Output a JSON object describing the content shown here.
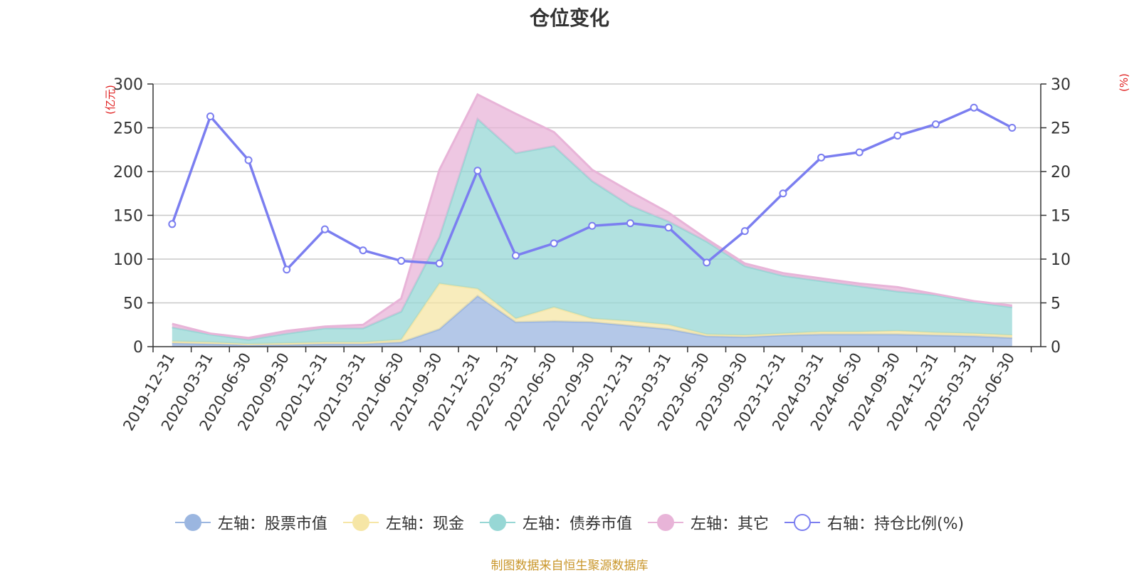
{
  "chart_data": {
    "type": "area",
    "title": "仓位变化",
    "left_axis_unit": "(亿元)",
    "right_axis_unit": "(%)",
    "ylim_left": [
      0,
      300
    ],
    "yticks_left": [
      0,
      50,
      100,
      150,
      200,
      250,
      300
    ],
    "ylim_right": [
      0,
      30
    ],
    "yticks_right": [
      0,
      5,
      10,
      15,
      20,
      25,
      30
    ],
    "grid": true,
    "legend_position": "bottom",
    "categories": [
      "2019-12-31",
      "2020-03-31",
      "2020-06-30",
      "2020-09-30",
      "2020-12-31",
      "2021-03-31",
      "2021-06-30",
      "2021-09-30",
      "2021-12-31",
      "2022-03-31",
      "2022-06-30",
      "2022-09-30",
      "2022-12-31",
      "2023-03-31",
      "2023-06-30",
      "2023-09-30",
      "2023-12-31",
      "2024-03-31",
      "2024-06-30",
      "2024-09-30",
      "2024-12-31",
      "2025-03-31",
      "2025-06-30"
    ],
    "series": [
      {
        "name": "左轴：股票市值",
        "axis": "left",
        "kind": "stacked-area",
        "color": "#9bb6e0",
        "values": [
          4,
          3,
          2,
          2,
          3,
          3,
          5,
          20,
          58,
          28,
          29,
          28,
          24,
          20,
          12,
          11,
          13,
          14,
          14,
          14,
          13,
          12,
          10
        ]
      },
      {
        "name": "左轴：现金",
        "axis": "left",
        "kind": "stacked-area",
        "color": "#f6e6a6",
        "values": [
          2,
          2,
          1,
          2,
          2,
          2,
          3,
          52,
          8,
          4,
          16,
          4,
          5,
          5,
          2,
          2,
          2,
          3,
          3,
          4,
          3,
          3,
          3
        ]
      },
      {
        "name": "左轴：债券市值",
        "axis": "left",
        "kind": "stacked-area",
        "color": "#97d7d5",
        "values": [
          16,
          9,
          5,
          11,
          16,
          16,
          32,
          53,
          194,
          189,
          184,
          157,
          132,
          118,
          106,
          79,
          66,
          58,
          52,
          45,
          43,
          36,
          32
        ]
      },
      {
        "name": "左轴：其它",
        "axis": "left",
        "kind": "stacked-area",
        "color": "#e8b4d8",
        "values": [
          4,
          1,
          2,
          3,
          2,
          4,
          15,
          77,
          28,
          45,
          16,
          13,
          16,
          10,
          3,
          3,
          3,
          3,
          3,
          5,
          1,
          1,
          2
        ]
      },
      {
        "name": "右轴：持仓比例(%)",
        "axis": "right",
        "kind": "line",
        "color": "#7b7ef0",
        "values": [
          14.0,
          26.3,
          21.3,
          8.8,
          13.4,
          11.0,
          9.8,
          9.5,
          20.1,
          10.4,
          11.8,
          13.8,
          14.1,
          13.6,
          9.6,
          13.2,
          17.5,
          21.6,
          22.2,
          24.1,
          25.4,
          27.3,
          25.0
        ]
      }
    ]
  },
  "source_note": "制图数据来自恒生聚源数据库"
}
